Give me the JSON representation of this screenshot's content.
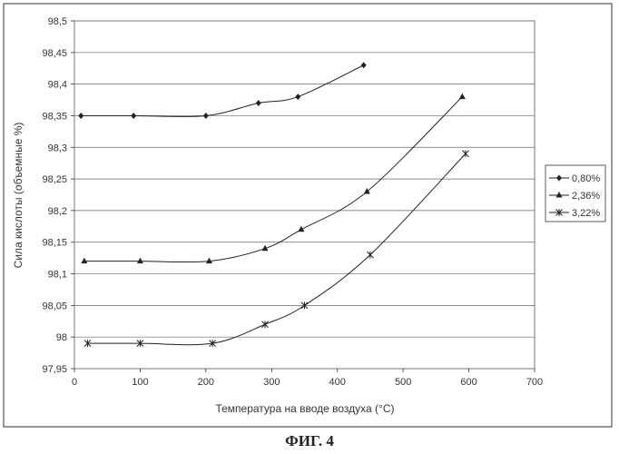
{
  "chart_data": {
    "type": "line",
    "title": "",
    "xlabel": "Температура на вводе воздуха (°C)",
    "ylabel": "Сила кислоты (объемные %)",
    "xlim": [
      0,
      700
    ],
    "ylim": [
      97.95,
      98.5
    ],
    "xticks": [
      "0",
      "100",
      "200",
      "300",
      "400",
      "500",
      "600",
      "700"
    ],
    "yticks": [
      "97,95",
      "98",
      "98,05",
      "98,1",
      "98,15",
      "98,2",
      "98,25",
      "98,3",
      "98,35",
      "98,4",
      "98,45",
      "98,5"
    ],
    "grid": "horizontal",
    "legend_position": "right",
    "series": [
      {
        "name": "0,80%",
        "marker": "diamond",
        "x": [
          10,
          90,
          200,
          280,
          340,
          440
        ],
        "y": [
          98.35,
          98.35,
          98.35,
          98.37,
          98.38,
          98.43
        ]
      },
      {
        "name": "2,36%",
        "marker": "triangle",
        "x": [
          15,
          100,
          205,
          290,
          345,
          445,
          590
        ],
        "y": [
          98.12,
          98.12,
          98.12,
          98.14,
          98.17,
          98.23,
          98.38
        ]
      },
      {
        "name": "3,22%",
        "marker": "asterisk",
        "x": [
          20,
          100,
          210,
          290,
          350,
          450,
          595
        ],
        "y": [
          97.99,
          97.99,
          97.99,
          98.02,
          98.05,
          98.13,
          98.29
        ]
      }
    ]
  },
  "caption": "ФИГ. 4"
}
